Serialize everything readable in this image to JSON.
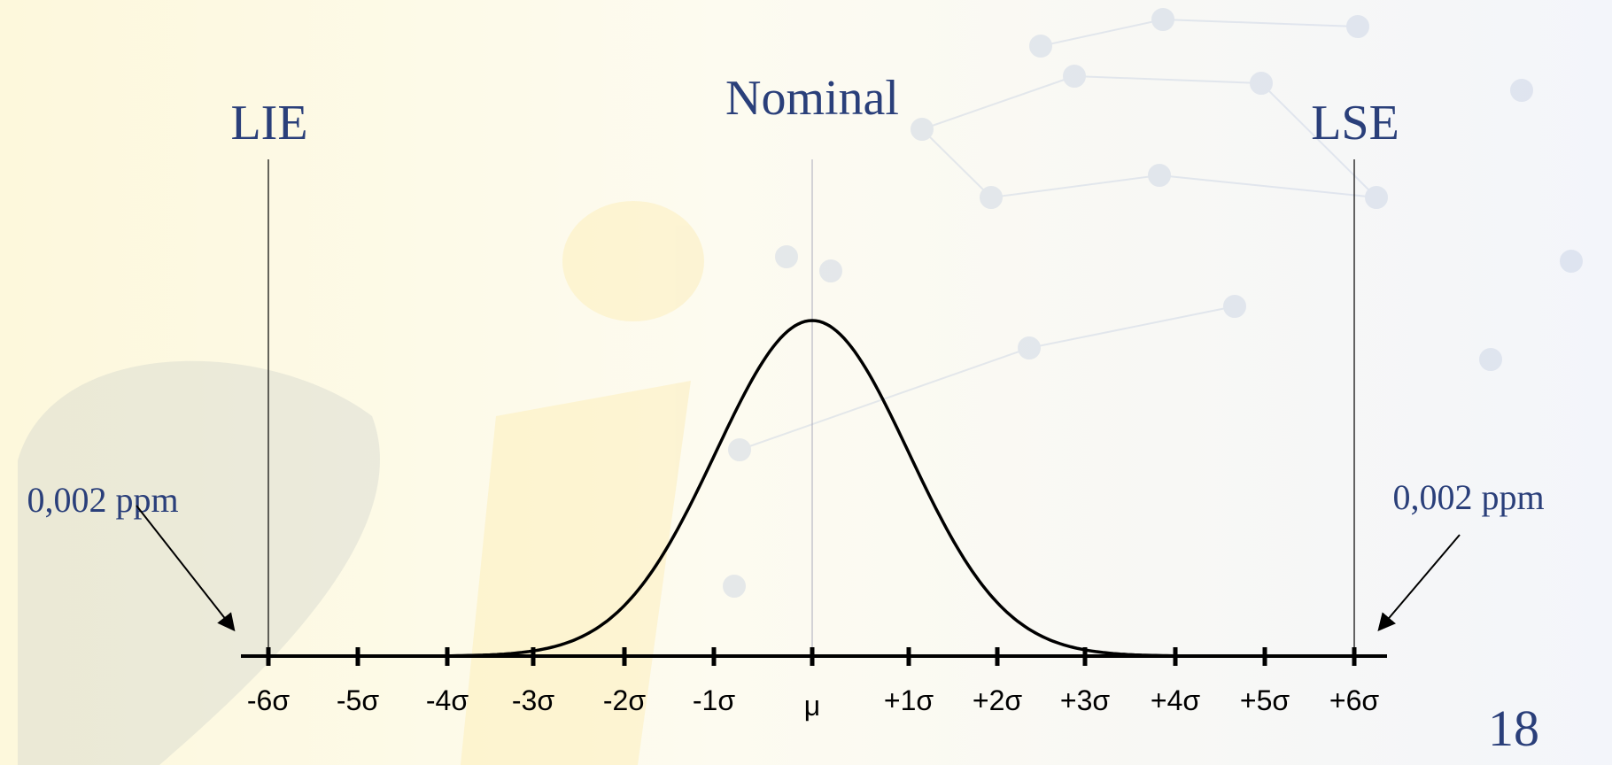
{
  "slide": {
    "limit_labels": {
      "lower": "LIE",
      "nominal": "Nominal",
      "upper": "LSE"
    },
    "annotations": [
      "0,002 ppm",
      "0,002 ppm"
    ],
    "axis_labels": [
      "-6σ",
      "-5σ",
      "-4σ",
      "-3σ",
      "-2σ",
      "-1σ",
      "μ",
      "+1σ",
      "+2σ",
      "+3σ",
      "+4σ",
      "+5σ",
      "+6σ"
    ],
    "page_number": "18"
  }
}
